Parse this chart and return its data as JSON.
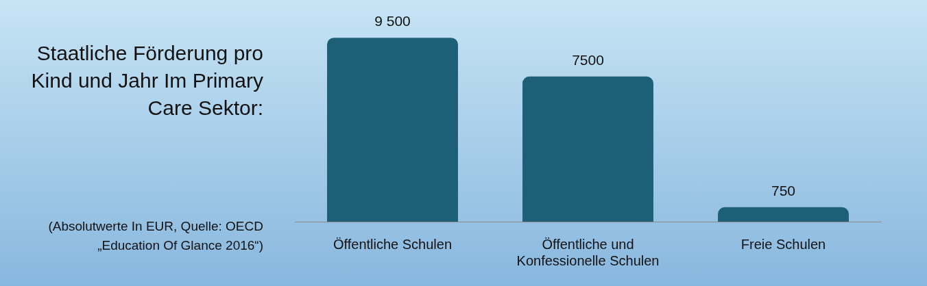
{
  "chart_data": {
    "type": "bar",
    "title": "Staatliche Förderung pro Kind und Jahr Im Primary Care Sektor:",
    "annotations": [
      "(Absolutwerte In EUR, Quelle: OECD „Education Of Glance 2016“)"
    ],
    "categories": [
      "Öffentliche Schulen",
      "Öffentliche und Konfessionelle Schulen",
      "Freie Schulen"
    ],
    "values": [
      9500,
      7500,
      750
    ],
    "color": "#1e5f78",
    "value_labels": [
      "9 500",
      "7500",
      "750"
    ],
    "grid": false,
    "legend": false,
    "tick_labels": "x"
  }
}
